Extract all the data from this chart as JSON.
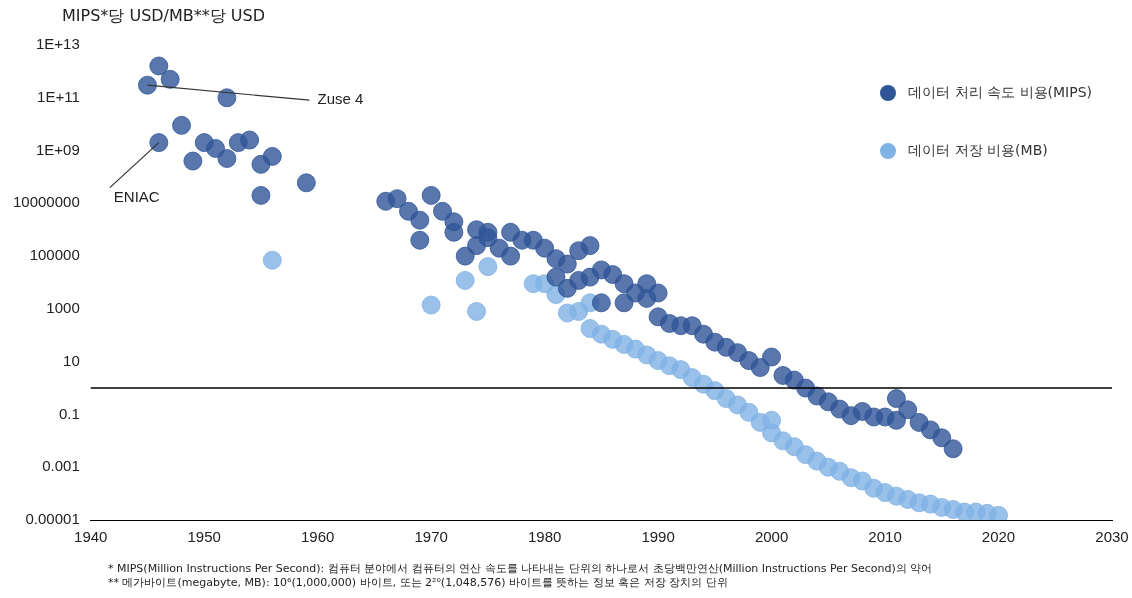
{
  "chart_data": {
    "type": "scatter",
    "ylabel": "MIPS*당 USD/MB**당 USD",
    "xlim": [
      1940,
      2030
    ],
    "xticks": [
      1940,
      1950,
      1960,
      1970,
      1980,
      1990,
      2000,
      2010,
      2020,
      2030
    ],
    "ylim": [
      1e-05,
      10000000000000.0
    ],
    "log": "y",
    "yticks": [
      {
        "value": 1e-05,
        "label": "0.00001"
      },
      0.001,
      0.1,
      10,
      1000,
      100000,
      10000000,
      {
        "value": 1000000000.0,
        "label": "1E+09"
      },
      {
        "value": 100000000000.0,
        "label": "1E+11"
      },
      {
        "value": 10000000000000.0,
        "label": "1E+13"
      }
    ],
    "grid": false,
    "legend": "top right",
    "marker": "circle",
    "ref_lines": [
      {
        "axis": "y",
        "value": 1,
        "color": "#000000"
      }
    ],
    "series": [
      {
        "name": "데이터 처리 속도 비용(MIPS)",
        "color": "#2f5597",
        "x": [
          1945,
          1946,
          1947,
          1946,
          1948,
          1949,
          1950,
          1951,
          1952,
          1952,
          1953,
          1954,
          1955,
          1955,
          1956,
          1959,
          1966,
          1967,
          1968,
          1969,
          1969,
          1970,
          1971,
          1972,
          1972,
          1973,
          1974,
          1974,
          1975,
          1975,
          1976,
          1977,
          1977,
          1978,
          1979,
          1980,
          1981,
          1981,
          1982,
          1982,
          1983,
          1983,
          1984,
          1984,
          1985,
          1985,
          1986,
          1987,
          1987,
          1988,
          1989,
          1989,
          1990,
          1990,
          1991,
          1992,
          1993,
          1994,
          1995,
          1996,
          1997,
          1998,
          1999,
          2000,
          2001,
          2002,
          2003,
          2004,
          2005,
          2006,
          2007,
          2008,
          2009,
          2010,
          2011,
          2011,
          2012,
          2013,
          2014,
          2015,
          2016
        ],
        "values": [
          300000000000.0,
          1600000000000.0,
          500000000000.0,
          2000000000.0,
          9000000000.0,
          400000000.0,
          2000000000.0,
          1200000000.0,
          100000000000.0,
          500000000.0,
          2000000000.0,
          2500000000.0,
          300000000.0,
          20000000.0,
          600000000.0,
          60000000.0,
          12000000.0,
          15000000.0,
          5000000.0,
          2300000.0,
          400000.0,
          20000000.0,
          5000000.0,
          2000000.0,
          800000.0,
          100000.0,
          1000000.0,
          250000.0,
          500000.0,
          800000.0,
          200000.0,
          800000.0,
          100000.0,
          400000.0,
          400000.0,
          200000.0,
          80000.0,
          16000.0,
          50000.0,
          6000.0,
          160000.0,
          12000.0,
          250000.0,
          16000.0,
          30000.0,
          1700.0,
          20000.0,
          9000.0,
          1700.0,
          4000.0,
          9000.0,
          2500.0,
          4000.0,
          500,
          280,
          230,
          230,
          110,
          55,
          35,
          22,
          11,
          6,
          15,
          3,
          2,
          1,
          0.5,
          0.3,
          0.16,
          0.09,
          0.13,
          0.08,
          0.08,
          0.4,
          0.06,
          0.15,
          0.05,
          0.026,
          0.013,
          0.005
        ]
      },
      {
        "name": "데이터 저장 비용(MB)",
        "color": "#7fb2e5",
        "x": [
          1956,
          1970,
          1973,
          1974,
          1975,
          1979,
          1980,
          1981,
          1982,
          1983,
          1984,
          1984,
          1985,
          1986,
          1987,
          1988,
          1989,
          1990,
          1991,
          1992,
          1993,
          1994,
          1995,
          1996,
          1997,
          1998,
          1999,
          2000,
          2000,
          2001,
          2002,
          2003,
          2004,
          2005,
          2006,
          2007,
          2008,
          2009,
          2010,
          2011,
          2012,
          2013,
          2014,
          2015,
          2016,
          2017,
          2018,
          2019,
          2020
        ],
        "values": [
          70000.0,
          1400.0,
          12000.0,
          800,
          40000.0,
          9000.0,
          9000.0,
          3500.0,
          700,
          800,
          1700.0,
          180,
          110,
          70,
          45,
          30,
          18,
          11,
          7,
          5,
          2.5,
          1.4,
          0.8,
          0.4,
          0.23,
          0.12,
          0.05,
          0.06,
          0.02,
          0.01,
          0.006,
          0.003,
          0.0017,
          0.001,
          0.0007,
          0.0004,
          0.0003,
          0.00016,
          0.00011,
          8e-05,
          6e-05,
          4.5e-05,
          4e-05,
          3e-05,
          2.5e-05,
          2e-05,
          2e-05,
          1.8e-05,
          1.5e-05
        ]
      }
    ],
    "annotations": [
      {
        "text": "Zuse 4",
        "x": 1945,
        "y": 300000000000.0
      },
      {
        "text": "ENIAC",
        "x": 1946,
        "y": 2000000000.0
      },
      "* MIPS(Million Instructions Per Second): 컴퓨터 분야에서 컴퓨터의 연산 속도를 나타내는 단위의 하나로서 초당백만연산(Million Instructions Per Second)의 약어",
      "** 메가바이트(megabyte, MB): 10⁶(1,000,000) 바이트, 또는 2²⁰(1,048,576) 바이트를 뜻하는 정보 혹은 저장 장치의 단위"
    ]
  }
}
